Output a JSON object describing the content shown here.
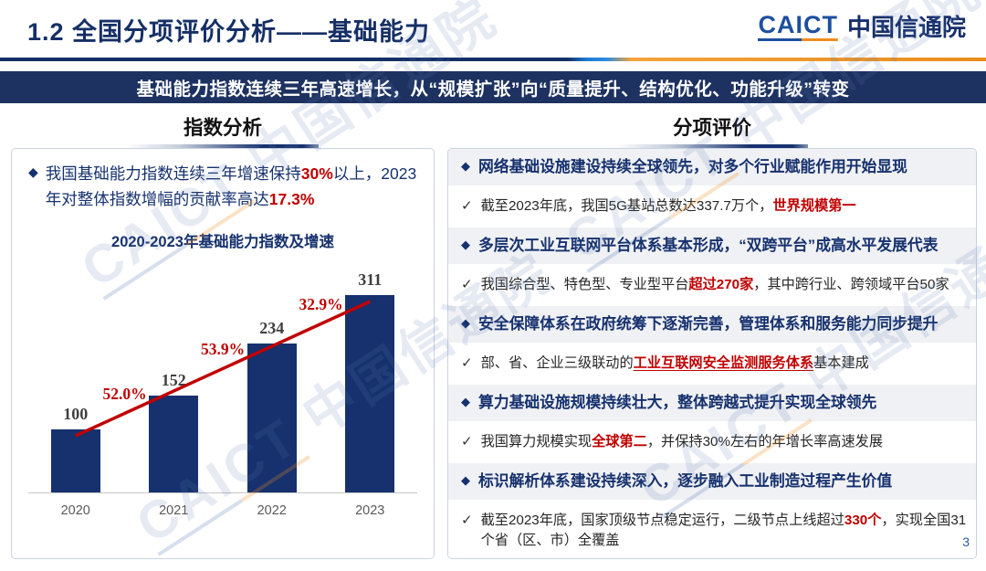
{
  "header": {
    "title": "1.2  全国分项评价分析——基础能力",
    "logo": {
      "brand": "CAICT",
      "name": "中国信通院"
    }
  },
  "banner": {
    "text": "基础能力指数连续三年高速增长，从“规模扩张”向“质量提升、结构优化、功能升级”转变"
  },
  "left_panel": {
    "heading": "指数分析",
    "bullet": {
      "segments": [
        {
          "text": "我国基础能力指数连续三年增速保持",
          "style": "navy"
        },
        {
          "text": "30%",
          "style": "red-bold"
        },
        {
          "text": "以上，2023年对整体指数增幅的贡献率高达",
          "style": "navy"
        },
        {
          "text": "17.3%",
          "style": "red-bold"
        }
      ]
    }
  },
  "chart_data": {
    "type": "bar",
    "title": "2020-2023年基础能力指数及增速",
    "categories": [
      "2020",
      "2021",
      "2022",
      "2023"
    ],
    "series": [
      {
        "name": "基础能力指数",
        "type": "bar",
        "values": [
          100,
          152,
          234,
          311
        ]
      },
      {
        "name": "增速",
        "type": "line",
        "values": [
          null,
          52.0,
          53.9,
          32.9
        ],
        "labels": [
          "",
          "52.0%",
          "53.9%",
          "32.9%"
        ]
      }
    ],
    "ylim": [
      0,
      340
    ],
    "bar_color": "#16316d",
    "line_color": "#c00000",
    "grid": false,
    "legend": "none"
  },
  "right_panel": {
    "heading": "分项评价",
    "items": [
      {
        "type": "diamond",
        "segments": [
          {
            "text": "网络基础设施建设持续全球领先，对多个行业赋能作用开始显现",
            "style": "navy-bold"
          }
        ]
      },
      {
        "type": "check",
        "segments": [
          {
            "text": "截至2023年底，我国5G基站总数达337.7万个，",
            "style": "dark"
          },
          {
            "text": "世界规模第一",
            "style": "red-bold"
          }
        ]
      },
      {
        "type": "diamond",
        "segments": [
          {
            "text": "多层次工业互联网平台体系基本形成，“双跨平台”成高水平发展代表",
            "style": "navy-bold"
          }
        ]
      },
      {
        "type": "check",
        "segments": [
          {
            "text": "我国综合型、特色型、专业型平台",
            "style": "dark"
          },
          {
            "text": "超过270家",
            "style": "red-bold"
          },
          {
            "text": "，其中跨行业、跨领域平台50家",
            "style": "dark"
          }
        ]
      },
      {
        "type": "diamond",
        "segments": [
          {
            "text": "安全保障体系在政府统筹下逐渐完善，管理体系和服务能力同步提升",
            "style": "navy-bold"
          }
        ]
      },
      {
        "type": "check",
        "segments": [
          {
            "text": "部、省、企业三级联动的",
            "style": "dark"
          },
          {
            "text": "工业互联网安全监测服务体系",
            "style": "red-bold-underline"
          },
          {
            "text": "基本建成",
            "style": "dark"
          }
        ]
      },
      {
        "type": "diamond",
        "segments": [
          {
            "text": "算力基础设施规模持续壮大，整体跨越式提升实现全球领先",
            "style": "navy-bold"
          }
        ]
      },
      {
        "type": "check",
        "segments": [
          {
            "text": "我国算力规模实现",
            "style": "dark"
          },
          {
            "text": "全球第二",
            "style": "red-bold"
          },
          {
            "text": "，并保持30%左右的年增长率高速发展",
            "style": "dark"
          }
        ]
      },
      {
        "type": "diamond",
        "segments": [
          {
            "text": "标识解析体系建设持续深入，逐步融入工业制造过程产生价值",
            "style": "navy-bold"
          }
        ]
      },
      {
        "type": "check",
        "segments": [
          {
            "text": "截至2023年底，国家顶级节点稳定运行，二级节点上线超过",
            "style": "dark"
          },
          {
            "text": "330个",
            "style": "red-bold"
          },
          {
            "text": "，实现全国31个省（区、市）全覆盖",
            "style": "dark"
          }
        ]
      }
    ]
  },
  "glyphs": {
    "diamond": "◆",
    "check": "✓"
  },
  "footer": {
    "page_number": "3"
  },
  "watermark": {
    "brand": "CAICT",
    "name": "中国信通院"
  },
  "colors": {
    "navy": "#16316d",
    "banner_bg": "#1d3260",
    "red": "#c00000",
    "logo_blue": "#1d4f9e",
    "accent_orange": "#e88d1a",
    "row_gray": "#f0f1f4"
  }
}
